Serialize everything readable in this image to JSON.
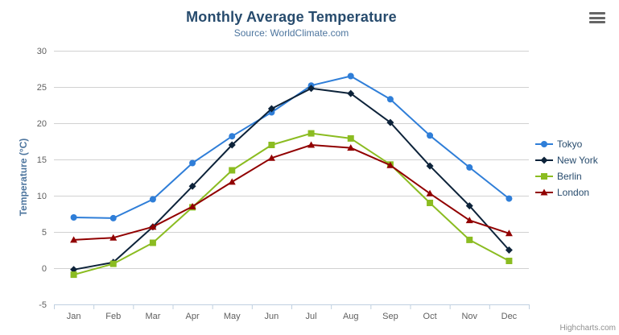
{
  "header": {
    "title": "Monthly Average Temperature",
    "subtitle": "Source: WorldClimate.com"
  },
  "toolbar": {
    "export_icon": "hamburger-icon"
  },
  "credits": {
    "label": "Highcharts.com"
  },
  "colors": {
    "title": "#274b6d",
    "subtitle": "#4d759e",
    "axis_labels": "#606060",
    "axis_line": "#c0d0e0",
    "gridline": "#d1d1d1",
    "legend_text": "#274b6d",
    "export_icon": "#666666",
    "credits_text": "#909090"
  },
  "chart_data": {
    "type": "line",
    "title": "Monthly Average Temperature",
    "subtitle": "Source: WorldClimate.com",
    "xlabel": "",
    "ylabel": "Temperature (°C)",
    "categories": [
      "Jan",
      "Feb",
      "Mar",
      "Apr",
      "May",
      "Jun",
      "Jul",
      "Aug",
      "Sep",
      "Oct",
      "Nov",
      "Dec"
    ],
    "ylim": [
      -5,
      30
    ],
    "ytick_interval": 5,
    "yticks": [
      -5,
      0,
      5,
      10,
      15,
      20,
      25,
      30
    ],
    "grid": true,
    "legend_position": "right",
    "series": [
      {
        "name": "Tokyo",
        "color": "#2f7ed8",
        "marker": "circle",
        "values": [
          7.0,
          6.9,
          9.5,
          14.5,
          18.2,
          21.5,
          25.2,
          26.5,
          23.3,
          18.3,
          13.9,
          9.6
        ]
      },
      {
        "name": "New York",
        "color": "#0d233a",
        "marker": "diamond",
        "values": [
          -0.2,
          0.8,
          5.7,
          11.3,
          17.0,
          22.0,
          24.8,
          24.1,
          20.1,
          14.1,
          8.6,
          2.5
        ]
      },
      {
        "name": "Berlin",
        "color": "#8bbc21",
        "marker": "square",
        "values": [
          -0.9,
          0.6,
          3.5,
          8.4,
          13.5,
          17.0,
          18.6,
          17.9,
          14.3,
          9.0,
          3.9,
          1.0
        ]
      },
      {
        "name": "London",
        "color": "#910000",
        "marker": "triangle",
        "values": [
          3.9,
          4.2,
          5.7,
          8.5,
          11.9,
          15.2,
          17.0,
          16.6,
          14.2,
          10.3,
          6.6,
          4.8
        ]
      }
    ]
  }
}
